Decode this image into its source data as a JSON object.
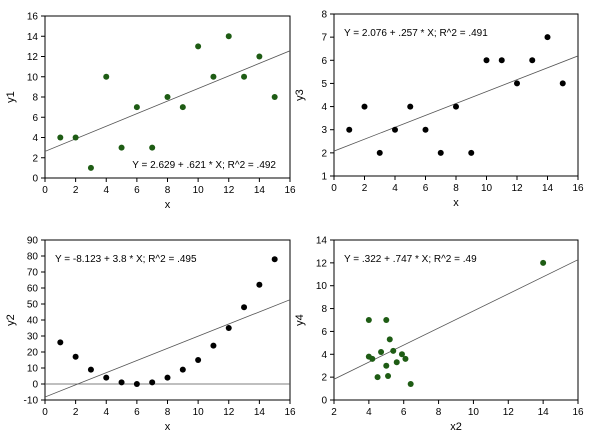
{
  "colors": {
    "green": "#1e5c14",
    "black": "#000000",
    "axis": "#000000",
    "fit": "#555555"
  },
  "chart_data": [
    {
      "type": "scatter",
      "xlabel": "x",
      "ylabel": "y1",
      "xlim": [
        0,
        16
      ],
      "ylim": [
        0,
        16
      ],
      "xticks": [
        0,
        2,
        4,
        6,
        8,
        10,
        12,
        14,
        16
      ],
      "yticks": [
        0,
        2,
        4,
        6,
        8,
        10,
        12,
        14,
        16
      ],
      "point_color": "green",
      "series": [
        {
          "x": [
            1,
            2,
            3,
            4,
            5,
            6,
            7,
            8,
            9,
            10,
            11,
            12,
            13,
            14,
            15
          ],
          "y": [
            4,
            4,
            1,
            10,
            3,
            7,
            3,
            8,
            7,
            13,
            10,
            14,
            10,
            12,
            8
          ]
        }
      ],
      "fit": {
        "intercept": 2.629,
        "slope": 0.621
      },
      "annotation": "Y = 2.629 + .621 * X; R^2 = .492",
      "annotation_position": "bottom-right",
      "zero_line": false
    },
    {
      "type": "scatter",
      "xlabel": "x",
      "ylabel": "y3",
      "xlim": [
        0,
        16
      ],
      "ylim": [
        1,
        8
      ],
      "xticks": [
        0,
        2,
        4,
        6,
        8,
        10,
        12,
        14,
        16
      ],
      "yticks": [
        1,
        2,
        3,
        4,
        5,
        6,
        7,
        8
      ],
      "point_color": "black",
      "series": [
        {
          "x": [
            1,
            2,
            3,
            4,
            5,
            6,
            7,
            8,
            9,
            10,
            11,
            12,
            13,
            14,
            15
          ],
          "y": [
            3,
            4,
            2,
            3,
            4,
            3,
            2,
            4,
            2,
            6,
            6,
            5,
            6,
            7,
            5
          ]
        }
      ],
      "fit": {
        "intercept": 2.076,
        "slope": 0.257
      },
      "annotation": "Y = 2.076 + .257 * X; R^2 = .491",
      "annotation_position": "top-left",
      "zero_line": false
    },
    {
      "type": "scatter",
      "xlabel": "x",
      "ylabel": "y2",
      "xlim": [
        0,
        16
      ],
      "ylim": [
        -10,
        90
      ],
      "xticks": [
        0,
        2,
        4,
        6,
        8,
        10,
        12,
        14,
        16
      ],
      "yticks": [
        -10,
        0,
        10,
        20,
        30,
        40,
        50,
        60,
        70,
        80,
        90
      ],
      "point_color": "black",
      "series": [
        {
          "x": [
            1,
            2,
            3,
            4,
            5,
            6,
            7,
            8,
            9,
            10,
            11,
            12,
            13,
            14,
            15
          ],
          "y": [
            26,
            17,
            9,
            4,
            1,
            0,
            1,
            4,
            9,
            15,
            24,
            35,
            48,
            62,
            78
          ]
        }
      ],
      "fit": {
        "intercept": -8.123,
        "slope": 3.8
      },
      "annotation": "Y = -8.123 + 3.8 * X; R^2 = .495",
      "annotation_position": "top-left",
      "zero_line": true
    },
    {
      "type": "scatter",
      "xlabel": "x2",
      "ylabel": "y4",
      "xlim": [
        2,
        16
      ],
      "ylim": [
        0,
        14
      ],
      "xticks": [
        2,
        4,
        6,
        8,
        10,
        12,
        14,
        16
      ],
      "yticks": [
        0,
        2,
        4,
        6,
        8,
        10,
        12,
        14
      ],
      "point_color": "green",
      "series": [
        {
          "x": [
            4,
            4,
            4.2,
            4.5,
            4.7,
            5,
            5,
            5.1,
            5.2,
            5.4,
            5.6,
            5.9,
            6.1,
            6.4,
            14
          ],
          "y": [
            7,
            3.8,
            3.6,
            2,
            4.2,
            7,
            3,
            2.1,
            5.3,
            4.3,
            3.3,
            4,
            3.6,
            1.4,
            12
          ]
        }
      ],
      "fit": {
        "intercept": 0.322,
        "slope": 0.747
      },
      "annotation": "Y = .322 + .747 * X; R^2 = .49",
      "annotation_position": "top-left",
      "zero_line": false
    }
  ]
}
